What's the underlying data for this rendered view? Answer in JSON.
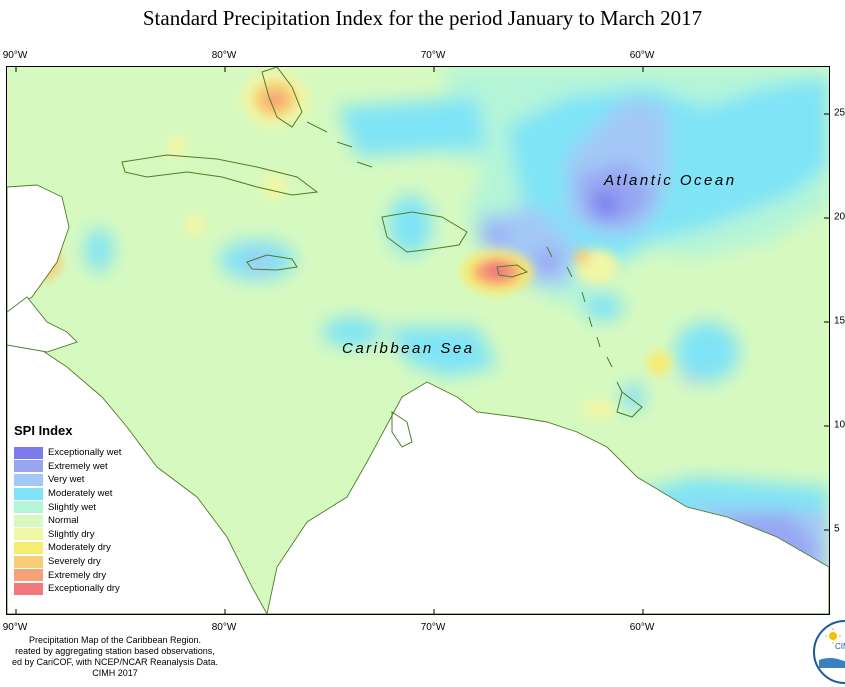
{
  "title": "Standard Precipitation Index for the period January to March 2017",
  "top_longitudes": [
    "90°W",
    "80°W",
    "70°W",
    "60°W"
  ],
  "bottom_longitudes": [
    "90°W",
    "80°W",
    "70°W",
    "60°W"
  ],
  "right_latitudes": [
    "25",
    "20",
    "15",
    "10",
    "5"
  ],
  "ocean_labels": {
    "atlantic": "Atlantic Ocean",
    "caribbean": "Caribbean Sea"
  },
  "legend": {
    "title": "SPI Index",
    "items": [
      {
        "label": "Exceptionally wet",
        "color": "#7b7bee"
      },
      {
        "label": "Extremely wet",
        "color": "#97a6f2"
      },
      {
        "label": "Very wet",
        "color": "#a3c8f7"
      },
      {
        "label": "Moderately wet",
        "color": "#7fe4f6"
      },
      {
        "label": "Slightly wet",
        "color": "#b4f5d8"
      },
      {
        "label": "Normal",
        "color": "#d6f9c0"
      },
      {
        "label": "Slightly dry",
        "color": "#f0f7a6"
      },
      {
        "label": "Moderately dry",
        "color": "#f7ec72"
      },
      {
        "label": "Severely dry",
        "color": "#f8cd78"
      },
      {
        "label": "Extremely dry",
        "color": "#f6a276"
      },
      {
        "label": "Exceptionally dry",
        "color": "#f2787e"
      }
    ]
  },
  "credits": [
    "Precipitation Map of the Caribbean Region.",
    "reated by aggregating station based observations,",
    "ed by CariCOF, with NCEP/NCAR Reanalysis Data.",
    "CIMH 2017"
  ],
  "logo_text": "CIM"
}
